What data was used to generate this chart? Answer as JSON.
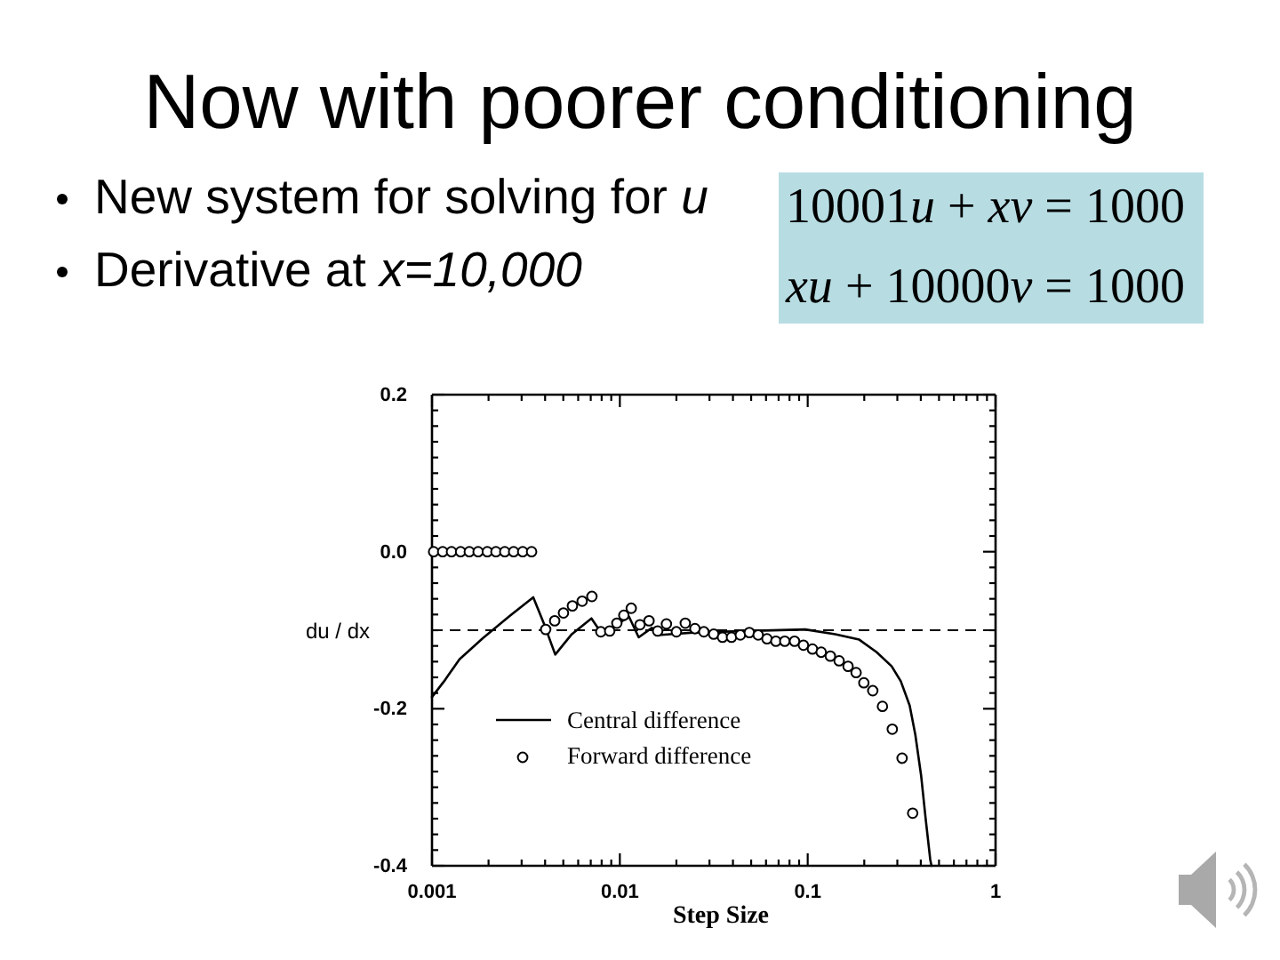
{
  "chart_data": {
    "type": "line",
    "title": "Now with poorer conditioning",
    "annotations": [
      "New system for solving for u",
      "Derivative at x=10,000",
      "10001u + xv = 1000",
      "xu + 10000v = 1000"
    ],
    "xlabel": "Step Size",
    "ylabel": "du / dx",
    "log": "x",
    "xlim": [
      0.001,
      1
    ],
    "xticks": [
      0.001,
      {
        "value": 0.002,
        "label": null
      },
      {
        "value": 0.003,
        "label": null
      },
      {
        "value": 0.004,
        "label": null
      },
      {
        "value": 0.005,
        "label": null
      },
      {
        "value": 0.006,
        "label": null
      },
      {
        "value": 0.007,
        "label": null
      },
      {
        "value": 0.008,
        "label": null
      },
      {
        "value": 0.009,
        "label": null
      },
      0.01,
      {
        "value": 0.02,
        "label": null
      },
      {
        "value": 0.03,
        "label": null
      },
      {
        "value": 0.04,
        "label": null
      },
      {
        "value": 0.05,
        "label": null
      },
      {
        "value": 0.06,
        "label": null
      },
      {
        "value": 0.07,
        "label": null
      },
      {
        "value": 0.08,
        "label": null
      },
      {
        "value": 0.09,
        "label": null
      },
      0.1,
      {
        "value": 0.2,
        "label": null
      },
      {
        "value": 0.3,
        "label": null
      },
      {
        "value": 0.4,
        "label": null
      },
      {
        "value": 0.5,
        "label": null
      },
      {
        "value": 0.6,
        "label": null
      },
      {
        "value": 0.7,
        "label": null
      },
      {
        "value": 0.8,
        "label": null
      },
      {
        "value": 0.9,
        "label": null
      },
      1
    ],
    "ylim": [
      -0.4,
      0.2
    ],
    "yticks": [
      -0.4,
      {
        "value": -0.38,
        "label": null
      },
      {
        "value": -0.36,
        "label": null
      },
      {
        "value": -0.34,
        "label": null
      },
      {
        "value": -0.32,
        "label": null
      },
      {
        "value": -0.3,
        "label": null
      },
      {
        "value": -0.28,
        "label": null
      },
      {
        "value": -0.26,
        "label": null
      },
      {
        "value": -0.24,
        "label": null
      },
      {
        "value": -0.22,
        "label": null
      },
      -0.2,
      {
        "value": -0.18,
        "label": null
      },
      {
        "value": -0.16,
        "label": null
      },
      {
        "value": -0.14,
        "label": null
      },
      {
        "value": -0.12,
        "label": null
      },
      {
        "value": -0.1,
        "label": null
      },
      {
        "value": -0.08,
        "label": null
      },
      {
        "value": -0.06,
        "label": null
      },
      {
        "value": -0.04,
        "label": null
      },
      {
        "value": -0.02,
        "label": null
      },
      {
        "value": 0,
        "label": "0.0"
      },
      {
        "value": 0.02,
        "label": null
      },
      {
        "value": 0.04,
        "label": null
      },
      {
        "value": 0.06,
        "label": null
      },
      {
        "value": 0.08,
        "label": null
      },
      {
        "value": 0.1,
        "label": null
      },
      {
        "value": 0.12,
        "label": null
      },
      {
        "value": 0.14,
        "label": null
      },
      {
        "value": 0.16,
        "label": null
      },
      {
        "value": 0.18,
        "label": null
      },
      0.2
    ],
    "ref_lines": [
      {
        "axis": "y",
        "value": -0.1,
        "color": "#000000",
        "line_style": "dashed"
      }
    ],
    "grid": false,
    "legend": "bottom left",
    "series": [
      {
        "name": "Central difference",
        "type": "line",
        "color": "#000000",
        "line_style": "solid",
        "x": [
          0.001,
          0.00116,
          0.0014,
          0.00187,
          0.00259,
          0.00346,
          0.00392,
          0.00453,
          0.00555,
          0.00706,
          0.00809,
          0.00943,
          0.0112,
          0.0126,
          0.0148,
          0.0166,
          0.0246,
          0.0473,
          0.097,
          0.14,
          0.188,
          0.233,
          0.28,
          0.313,
          0.349,
          0.374,
          0.402,
          0.424,
          0.449,
          0.456
        ],
        "values": [
          -0.185,
          -0.165,
          -0.137,
          -0.11,
          -0.082,
          -0.058,
          -0.09,
          -0.131,
          -0.105,
          -0.085,
          -0.106,
          -0.094,
          -0.083,
          -0.109,
          -0.097,
          -0.106,
          -0.103,
          -0.101,
          -0.099,
          -0.105,
          -0.112,
          -0.128,
          -0.146,
          -0.165,
          -0.196,
          -0.233,
          -0.286,
          -0.339,
          -0.392,
          -0.4
        ]
      },
      {
        "name": "Forward difference",
        "type": "scatter",
        "color": "#000000",
        "marker": "circle",
        "x": [
          0.00102,
          0.00114,
          0.00127,
          0.00142,
          0.00158,
          0.00176,
          0.00197,
          0.00219,
          0.00244,
          0.00272,
          0.00304,
          0.00339,
          0.00403,
          0.0045,
          0.00501,
          0.00559,
          0.0063,
          0.0071,
          0.00792,
          0.00883,
          0.00964,
          0.0105,
          0.0115,
          0.0128,
          0.0143,
          0.0159,
          0.0177,
          0.02,
          0.0223,
          0.0251,
          0.028,
          0.0316,
          0.0352,
          0.0393,
          0.0438,
          0.0489,
          0.0545,
          0.0607,
          0.0677,
          0.0755,
          0.0851,
          0.0949,
          0.106,
          0.118,
          0.132,
          0.147,
          0.164,
          0.181,
          0.199,
          0.222,
          0.25,
          0.282,
          0.318,
          0.362
        ],
        "values": [
          0,
          0,
          0,
          0,
          0,
          0,
          0,
          0,
          0,
          0,
          0,
          0,
          -0.099,
          -0.088,
          -0.078,
          -0.069,
          -0.063,
          -0.057,
          -0.102,
          -0.101,
          -0.091,
          -0.081,
          -0.072,
          -0.093,
          -0.088,
          -0.101,
          -0.092,
          -0.102,
          -0.091,
          -0.098,
          -0.102,
          -0.105,
          -0.109,
          -0.109,
          -0.106,
          -0.103,
          -0.106,
          -0.111,
          -0.114,
          -0.114,
          -0.114,
          -0.119,
          -0.124,
          -0.128,
          -0.133,
          -0.139,
          -0.146,
          -0.154,
          -0.167,
          -0.177,
          -0.197,
          -0.226,
          -0.263,
          -0.333
        ]
      }
    ]
  }
}
